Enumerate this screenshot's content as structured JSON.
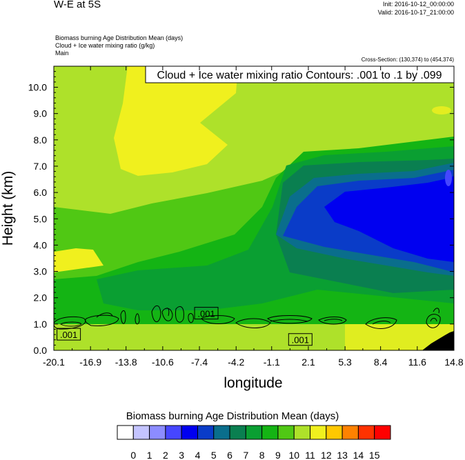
{
  "header": {
    "title": "W-E at 5S",
    "init": "Init: 2016-10-12_00:00:00",
    "valid": "Valid: 2016-10-17_21:00:00",
    "fields": [
      "Biomass burning Age Distribution Mean   (days)",
      "Cloud + Ice water mixing ratio   (g/kg)",
      "Main"
    ],
    "cross_section": "Cross-Section: (130,374) to (454,374)"
  },
  "chart_data": {
    "type": "heatmap",
    "title": "W-E at 5S",
    "contour_label": "Cloud + Ice water mixing ratio Contours: .001 to .1 by .099",
    "xlabel": "longitude",
    "ylabel": "Height (km)",
    "xlim": [
      -20.1,
      14.8
    ],
    "ylim": [
      0.0,
      10.8
    ],
    "x_ticks": [
      "-20.1",
      "-16.9",
      "-13.8",
      "-10.6",
      "-7.4",
      "-4.2",
      "-1.1",
      "2.1",
      "5.3",
      "8.4",
      "11.6",
      "14.8"
    ],
    "y_ticks": [
      "0.0",
      "1.0",
      "2.0",
      "3.0",
      "4.0",
      "5.0",
      "6.0",
      "7.0",
      "8.0",
      "9.0",
      "10.0"
    ],
    "contour_labels": [
      {
        "text": ".001",
        "lon": -18.8,
        "height": 0.6
      },
      {
        "text": ".001",
        "lon": -6.8,
        "height": 1.4
      },
      {
        "text": ".001",
        "lon": 1.4,
        "height": 0.4
      }
    ],
    "regions_note": "Mean age of biomass burning smoke (days): ~11 above 8 km in the west, 9-10 over much of the domain, 6-8 at 2-3 km, 3-5 between 4 and 7 km east of -2, 10-11 near the surface.",
    "colorbar": {
      "title": "Biomass burning Age Distribution Mean  (days)",
      "labels": [
        "0",
        "1",
        "2",
        "3",
        "4",
        "5",
        "6",
        "7",
        "8",
        "9",
        "10",
        "11",
        "12",
        "13",
        "14",
        "15"
      ],
      "colors": [
        "#ffffff",
        "#c4c4ff",
        "#8c8cff",
        "#4646ff",
        "#0000f0",
        "#0a3cc8",
        "#0a6e8c",
        "#0a7f50",
        "#0a9f32",
        "#14b414",
        "#50c814",
        "#aee12a",
        "#f0f01e",
        "#ffc800",
        "#ff8200",
        "#ff3200",
        "#ff0000"
      ]
    }
  }
}
